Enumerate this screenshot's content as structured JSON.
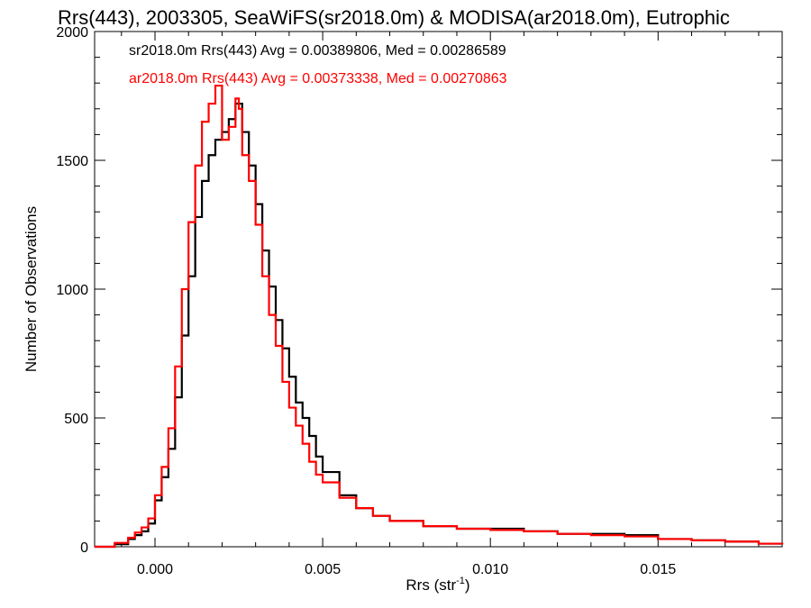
{
  "chart_data": {
    "type": "line",
    "title": "Rrs(443), 2003305, SeaWiFS(sr2018.0m) & MODISA(ar2018.0m), Eutrophic",
    "xlabel_base": "Rrs (str",
    "xlabel_sup": "-1",
    "xlabel_close": ")",
    "ylabel": "Number of Observations",
    "xlim": [
      -0.0018,
      0.0187
    ],
    "ylim": [
      0,
      2000
    ],
    "x_ticks": [
      0.0,
      0.005,
      0.01,
      0.015
    ],
    "x_tick_labels": [
      "0.000",
      "0.005",
      "0.010",
      "0.015"
    ],
    "y_ticks": [
      0,
      500,
      1000,
      1500,
      2000
    ],
    "y_tick_labels": [
      "0",
      "500",
      "1000",
      "1500",
      "2000"
    ],
    "grid": false,
    "legend_position": "top-left",
    "series": [
      {
        "name": "sr2018.0m Rrs(443) Avg = 0.00389806, Med = 0.00286589",
        "color": "#000000",
        "step": true,
        "x": [
          -0.0018,
          -0.0012,
          -0.0008,
          -0.0006,
          -0.0004,
          -0.0002,
          0.0,
          0.0002,
          0.0004,
          0.0006,
          0.0008,
          0.001,
          0.0012,
          0.0014,
          0.0016,
          0.0018,
          0.002,
          0.0022,
          0.0024,
          0.0025,
          0.0026,
          0.0028,
          0.003,
          0.0032,
          0.0034,
          0.0036,
          0.0038,
          0.004,
          0.0042,
          0.0044,
          0.0046,
          0.0048,
          0.005,
          0.0055,
          0.006,
          0.0065,
          0.007,
          0.008,
          0.009,
          0.01,
          0.011,
          0.012,
          0.013,
          0.014,
          0.015,
          0.016,
          0.017,
          0.018,
          0.0187
        ],
        "y": [
          0,
          10,
          30,
          45,
          60,
          90,
          180,
          270,
          380,
          580,
          820,
          1050,
          1280,
          1420,
          1520,
          1580,
          1610,
          1660,
          1720,
          1720,
          1610,
          1480,
          1330,
          1150,
          1010,
          880,
          770,
          660,
          560,
          500,
          430,
          350,
          290,
          200,
          150,
          120,
          100,
          80,
          70,
          70,
          60,
          50,
          50,
          45,
          30,
          25,
          20,
          12,
          10
        ]
      },
      {
        "name": "ar2018.0m Rrs(443) Avg = 0.00373338, Med = 0.00270863",
        "color": "#ff0000",
        "step": true,
        "x": [
          -0.0018,
          -0.0012,
          -0.0008,
          -0.0006,
          -0.0004,
          -0.0002,
          0.0,
          0.0002,
          0.0004,
          0.0006,
          0.0008,
          0.001,
          0.0012,
          0.0014,
          0.0016,
          0.0018,
          0.002,
          0.0022,
          0.0024,
          0.0025,
          0.0026,
          0.0028,
          0.003,
          0.0032,
          0.0034,
          0.0036,
          0.0038,
          0.004,
          0.0042,
          0.0044,
          0.0046,
          0.0048,
          0.005,
          0.0055,
          0.006,
          0.0065,
          0.007,
          0.008,
          0.009,
          0.01,
          0.011,
          0.012,
          0.013,
          0.014,
          0.015,
          0.016,
          0.017,
          0.018,
          0.0187
        ],
        "y": [
          0,
          15,
          35,
          55,
          75,
          110,
          200,
          310,
          460,
          700,
          1000,
          1260,
          1480,
          1650,
          1720,
          1790,
          1580,
          1630,
          1740,
          1700,
          1520,
          1420,
          1250,
          1050,
          900,
          780,
          640,
          540,
          470,
          400,
          330,
          280,
          250,
          190,
          150,
          120,
          100,
          80,
          70,
          65,
          60,
          50,
          45,
          40,
          30,
          25,
          20,
          12,
          10
        ]
      }
    ]
  }
}
